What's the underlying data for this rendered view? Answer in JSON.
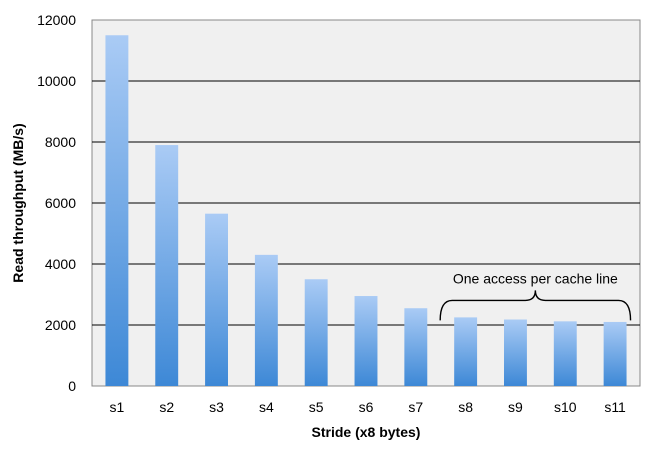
{
  "chart_data": {
    "type": "bar",
    "title": "",
    "xlabel": "Stride (x8 bytes)",
    "ylabel": "Read throughput (MB/s)",
    "categories": [
      "s1",
      "s2",
      "s3",
      "s4",
      "s5",
      "s6",
      "s7",
      "s8",
      "s9",
      "s10",
      "s11"
    ],
    "values": [
      11500,
      7900,
      5650,
      4300,
      3500,
      2950,
      2550,
      2250,
      2180,
      2120,
      2100
    ],
    "ylim": [
      0,
      12000
    ],
    "yticks": [
      0,
      2000,
      4000,
      6000,
      8000,
      10000,
      12000
    ],
    "grid": true,
    "plot_background": "#f0f0f0",
    "bar_color_top": "#aacbf5",
    "bar_color_bottom": "#3d88d6",
    "annotation": {
      "text": "One access per cache line",
      "span_categories": [
        "s8",
        "s11"
      ]
    }
  }
}
